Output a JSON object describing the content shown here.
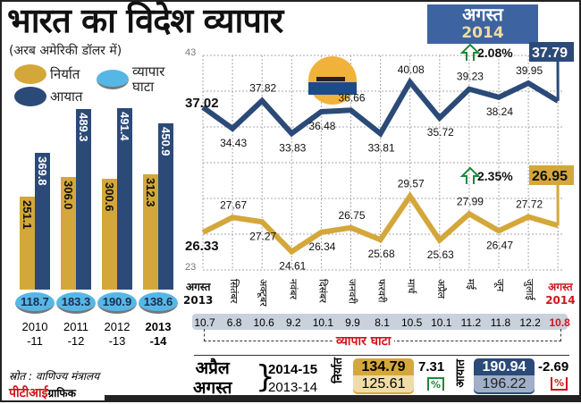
{
  "title": "भारत का विदेश व्यापार",
  "unit": "(अरब अमेरिकी डॉलर में)",
  "badge": {
    "month": "अगस्त",
    "year": "2014",
    "color": "#3d64a0"
  },
  "legend": {
    "exports": "निर्यात",
    "imports": "आयात",
    "deficit": "व्यापार घाटा"
  },
  "colors": {
    "exports": "#d4a73a",
    "imports": "#2b4a78",
    "deficit": "#56b7e6",
    "highlight": "#d0141a"
  },
  "chart_data": [
    {
      "type": "bar",
      "categories": [
        "2010\n-11",
        "2011\n-12",
        "2012\n-13",
        "2013\n-14"
      ],
      "series": [
        {
          "name": "निर्यात",
          "values": [
            251.1,
            306.0,
            300.6,
            312.3
          ]
        },
        {
          "name": "आयात",
          "values": [
            369.8,
            489.3,
            491.4,
            450.9
          ]
        }
      ],
      "deficit": {
        "name": "व्यापार घाटा",
        "values": [
          118.7,
          183.3,
          190.9,
          138.6
        ]
      }
    },
    {
      "type": "line",
      "ylim": [
        23,
        43
      ],
      "yticks": [
        "43",
        "23"
      ],
      "categories": [
        "अगस्त 2013",
        "सितंबर",
        "अक्टूबर",
        "नवंबर",
        "दिसंबर",
        "जनवरी",
        "फरवरी",
        "मार्च",
        "अप्रैल",
        "मई",
        "जून",
        "जुलाई",
        "अगस्त 2014"
      ],
      "series": [
        {
          "name": "आयात",
          "values": [
            37.02,
            34.43,
            37.82,
            33.83,
            36.48,
            36.66,
            33.81,
            40.08,
            35.72,
            39.23,
            38.24,
            39.95,
            37.79
          ],
          "change": "2.08%"
        },
        {
          "name": "निर्यात",
          "values": [
            26.33,
            27.67,
            27.27,
            24.61,
            26.34,
            26.75,
            25.68,
            29.57,
            25.63,
            27.99,
            26.47,
            27.72,
            26.95
          ],
          "change": "2.35%"
        }
      ],
      "first_label": {
        "month": "अगस्त",
        "year": "2013"
      },
      "last_label": {
        "month": "अगस्त",
        "year": "2014"
      },
      "deficit": {
        "name": "व्यापार घाटा",
        "values": [
          "10.7",
          "6.8",
          "10.6",
          "9.2",
          "10.1",
          "9.9",
          "8.1",
          "10.5",
          "10.1",
          "11.2",
          "11.8",
          "12.2",
          "10.8"
        ]
      }
    }
  ],
  "summary": {
    "period_top": "अप्रैल",
    "period_bottom": "अगस्त",
    "year_cur": "2014-15",
    "year_prev": "2013-14",
    "exports_label": "निर्यात",
    "exports_cur": "134.79",
    "exports_prev": "125.61",
    "exports_change": "7.31",
    "imports_label": "आयात",
    "imports_cur": "190.94",
    "imports_prev": "196.22",
    "imports_change": "-2.69",
    "pct": "%"
  },
  "source": "स्रोत : वाणिज्य मंत्रालय",
  "credit": {
    "brand": "पीटीआई",
    "text": "ग्राफिक"
  }
}
